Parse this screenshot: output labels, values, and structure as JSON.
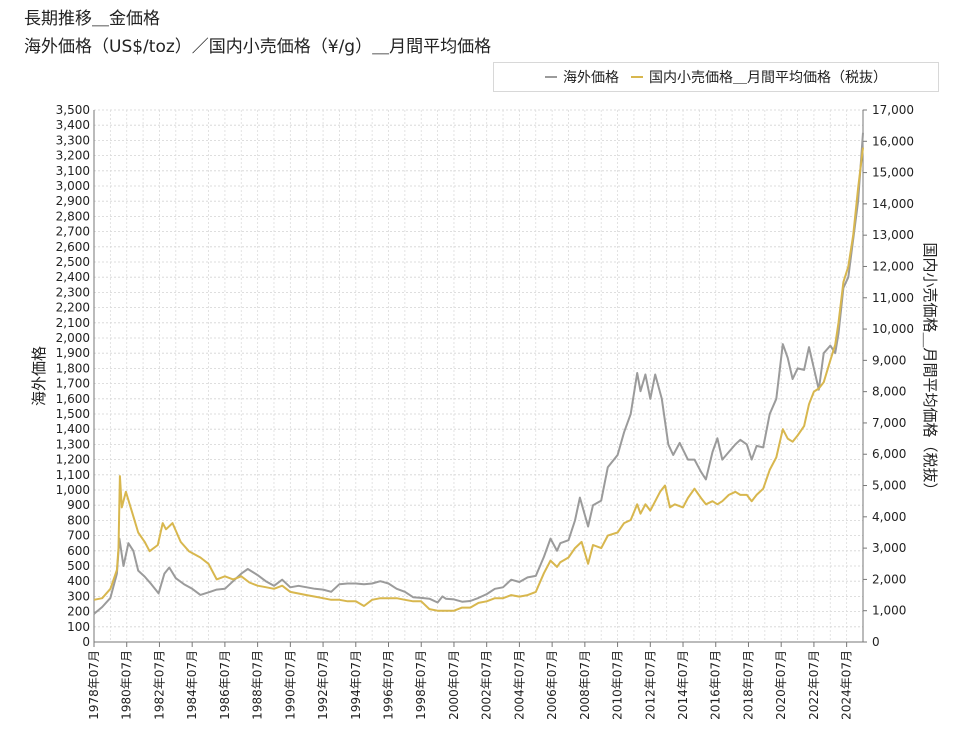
{
  "header": {
    "title_line1": "長期推移＿金価格",
    "title_line2": "海外価格（US$/toz）／国内小売価格（¥/g）＿月間平均価格"
  },
  "chart_data": {
    "type": "line",
    "title": "長期推移＿金価格",
    "subtitle": "海外価格（US$/toz）／国内小売価格（¥/g）＿月間平均価格",
    "legend_position": "top-right",
    "grid": true,
    "y_left": {
      "label": "海外価格",
      "range": [
        0,
        3500
      ],
      "ticks": [
        "0",
        "100",
        "200",
        "300",
        "400",
        "500",
        "600",
        "700",
        "800",
        "900",
        "1,000",
        "1,100",
        "1,200",
        "1,300",
        "1,400",
        "1,500",
        "1,600",
        "1,700",
        "1,800",
        "1,900",
        "2,000",
        "2,100",
        "2,200",
        "2,300",
        "2,400",
        "2,500",
        "2,600",
        "2,700",
        "2,800",
        "2,900",
        "3,000",
        "3,100",
        "3,200",
        "3,300",
        "3,400",
        "3,500"
      ]
    },
    "y_right": {
      "label": "国内小売価格＿月間平均価格（税抜）",
      "range": [
        0,
        17000
      ],
      "ticks": [
        "0",
        "1,000",
        "2,000",
        "3,000",
        "4,000",
        "5,000",
        "6,000",
        "7,000",
        "8,000",
        "9,000",
        "10,000",
        "11,000",
        "12,000",
        "13,000",
        "14,000",
        "15,000",
        "16,000",
        "17,000"
      ]
    },
    "x_range": [
      1978.5,
      2025.5
    ],
    "x_tick_labels": [
      "1978年07月",
      "1980年07月",
      "1982年07月",
      "1984年07月",
      "1986年07月",
      "1988年07月",
      "1990年07月",
      "1992年07月",
      "1994年07月",
      "1996年07月",
      "1998年07月",
      "2000年07月",
      "2002年07月",
      "2004年07月",
      "2006年07月",
      "2008年07月",
      "2010年07月",
      "2012年07月",
      "2014年07月",
      "2016年07月",
      "2018年07月",
      "2020年07月",
      "2022年07月",
      "2024年07月"
    ],
    "series": [
      {
        "name": "海外価格",
        "axis": "left",
        "color": "#9b9b9b",
        "points": [
          [
            1978.5,
            185
          ],
          [
            1979.0,
            230
          ],
          [
            1979.5,
            290
          ],
          [
            1979.9,
            450
          ],
          [
            1980.05,
            680
          ],
          [
            1980.3,
            500
          ],
          [
            1980.6,
            650
          ],
          [
            1980.9,
            600
          ],
          [
            1981.2,
            470
          ],
          [
            1981.6,
            430
          ],
          [
            1982.0,
            380
          ],
          [
            1982.45,
            320
          ],
          [
            1982.8,
            450
          ],
          [
            1983.1,
            490
          ],
          [
            1983.5,
            420
          ],
          [
            1984.0,
            380
          ],
          [
            1984.5,
            350
          ],
          [
            1985.0,
            310
          ],
          [
            1985.6,
            330
          ],
          [
            1986.0,
            345
          ],
          [
            1986.5,
            350
          ],
          [
            1987.0,
            400
          ],
          [
            1987.5,
            450
          ],
          [
            1987.9,
            480
          ],
          [
            1988.5,
            440
          ],
          [
            1989.0,
            400
          ],
          [
            1989.5,
            370
          ],
          [
            1990.0,
            410
          ],
          [
            1990.5,
            360
          ],
          [
            1991.0,
            370
          ],
          [
            1991.5,
            360
          ],
          [
            1992.0,
            350
          ],
          [
            1992.5,
            345
          ],
          [
            1993.0,
            330
          ],
          [
            1993.5,
            380
          ],
          [
            1994.0,
            385
          ],
          [
            1994.5,
            385
          ],
          [
            1995.0,
            380
          ],
          [
            1995.5,
            385
          ],
          [
            1996.0,
            400
          ],
          [
            1996.5,
            385
          ],
          [
            1997.0,
            350
          ],
          [
            1997.5,
            330
          ],
          [
            1998.0,
            295
          ],
          [
            1998.5,
            290
          ],
          [
            1999.0,
            285
          ],
          [
            1999.5,
            260
          ],
          [
            1999.8,
            300
          ],
          [
            2000.0,
            285
          ],
          [
            2000.5,
            280
          ],
          [
            2001.0,
            265
          ],
          [
            2001.5,
            270
          ],
          [
            2002.0,
            290
          ],
          [
            2002.5,
            315
          ],
          [
            2003.0,
            350
          ],
          [
            2003.5,
            360
          ],
          [
            2004.0,
            410
          ],
          [
            2004.5,
            395
          ],
          [
            2005.0,
            425
          ],
          [
            2005.5,
            435
          ],
          [
            2006.0,
            560
          ],
          [
            2006.4,
            680
          ],
          [
            2006.8,
            600
          ],
          [
            2007.0,
            650
          ],
          [
            2007.5,
            670
          ],
          [
            2007.9,
            800
          ],
          [
            2008.2,
            950
          ],
          [
            2008.7,
            760
          ],
          [
            2009.0,
            900
          ],
          [
            2009.5,
            930
          ],
          [
            2009.9,
            1150
          ],
          [
            2010.5,
            1230
          ],
          [
            2010.9,
            1380
          ],
          [
            2011.3,
            1500
          ],
          [
            2011.7,
            1770
          ],
          [
            2011.9,
            1650
          ],
          [
            2012.2,
            1760
          ],
          [
            2012.5,
            1600
          ],
          [
            2012.8,
            1760
          ],
          [
            2013.2,
            1600
          ],
          [
            2013.6,
            1300
          ],
          [
            2013.9,
            1230
          ],
          [
            2014.3,
            1310
          ],
          [
            2014.8,
            1200
          ],
          [
            2015.2,
            1200
          ],
          [
            2015.6,
            1120
          ],
          [
            2015.9,
            1070
          ],
          [
            2016.3,
            1250
          ],
          [
            2016.6,
            1340
          ],
          [
            2016.9,
            1200
          ],
          [
            2017.3,
            1250
          ],
          [
            2017.7,
            1300
          ],
          [
            2018.0,
            1330
          ],
          [
            2018.4,
            1300
          ],
          [
            2018.7,
            1200
          ],
          [
            2019.0,
            1290
          ],
          [
            2019.4,
            1280
          ],
          [
            2019.8,
            1500
          ],
          [
            2020.2,
            1600
          ],
          [
            2020.6,
            1960
          ],
          [
            2020.9,
            1870
          ],
          [
            2021.2,
            1730
          ],
          [
            2021.5,
            1800
          ],
          [
            2021.9,
            1790
          ],
          [
            2022.2,
            1940
          ],
          [
            2022.5,
            1800
          ],
          [
            2022.8,
            1660
          ],
          [
            2023.1,
            1900
          ],
          [
            2023.5,
            1950
          ],
          [
            2023.8,
            1900
          ],
          [
            2024.0,
            2030
          ],
          [
            2024.3,
            2330
          ],
          [
            2024.6,
            2400
          ],
          [
            2024.9,
            2650
          ],
          [
            2025.2,
            2900
          ],
          [
            2025.5,
            3350
          ]
        ]
      },
      {
        "name": "国内小売価格＿月間平均価格（税抜）",
        "axis": "right",
        "color": "#d8b74e",
        "points": [
          [
            1978.5,
            1350
          ],
          [
            1979.0,
            1400
          ],
          [
            1979.5,
            1700
          ],
          [
            1979.9,
            2300
          ],
          [
            1980.0,
            3000
          ],
          [
            1980.08,
            5300
          ],
          [
            1980.2,
            4300
          ],
          [
            1980.45,
            4800
          ],
          [
            1980.8,
            4200
          ],
          [
            1981.2,
            3500
          ],
          [
            1981.6,
            3200
          ],
          [
            1981.9,
            2900
          ],
          [
            1982.4,
            3100
          ],
          [
            1982.7,
            3800
          ],
          [
            1982.9,
            3600
          ],
          [
            1983.3,
            3800
          ],
          [
            1983.8,
            3200
          ],
          [
            1984.3,
            2900
          ],
          [
            1985.0,
            2700
          ],
          [
            1985.5,
            2500
          ],
          [
            1986.0,
            2000
          ],
          [
            1986.5,
            2100
          ],
          [
            1987.0,
            2000
          ],
          [
            1987.5,
            2100
          ],
          [
            1988.0,
            1900
          ],
          [
            1988.5,
            1800
          ],
          [
            1989.0,
            1750
          ],
          [
            1989.5,
            1700
          ],
          [
            1990.0,
            1800
          ],
          [
            1990.5,
            1600
          ],
          [
            1991.0,
            1550
          ],
          [
            1991.5,
            1500
          ],
          [
            1992.0,
            1450
          ],
          [
            1992.5,
            1400
          ],
          [
            1993.0,
            1350
          ],
          [
            1993.5,
            1350
          ],
          [
            1994.0,
            1300
          ],
          [
            1994.5,
            1300
          ],
          [
            1995.0,
            1150
          ],
          [
            1995.5,
            1350
          ],
          [
            1996.0,
            1400
          ],
          [
            1996.5,
            1400
          ],
          [
            1997.0,
            1400
          ],
          [
            1997.5,
            1350
          ],
          [
            1998.0,
            1300
          ],
          [
            1998.5,
            1300
          ],
          [
            1999.0,
            1050
          ],
          [
            1999.5,
            1000
          ],
          [
            2000.0,
            1000
          ],
          [
            2000.5,
            1000
          ],
          [
            2001.0,
            1100
          ],
          [
            2001.5,
            1100
          ],
          [
            2002.0,
            1250
          ],
          [
            2002.5,
            1300
          ],
          [
            2003.0,
            1400
          ],
          [
            2003.5,
            1400
          ],
          [
            2004.0,
            1500
          ],
          [
            2004.5,
            1450
          ],
          [
            2005.0,
            1500
          ],
          [
            2005.5,
            1600
          ],
          [
            2006.0,
            2200
          ],
          [
            2006.4,
            2600
          ],
          [
            2006.8,
            2400
          ],
          [
            2007.0,
            2550
          ],
          [
            2007.5,
            2700
          ],
          [
            2007.9,
            3000
          ],
          [
            2008.3,
            3200
          ],
          [
            2008.7,
            2500
          ],
          [
            2009.0,
            3100
          ],
          [
            2009.5,
            3000
          ],
          [
            2009.9,
            3400
          ],
          [
            2010.5,
            3500
          ],
          [
            2010.9,
            3800
          ],
          [
            2011.3,
            3900
          ],
          [
            2011.7,
            4400
          ],
          [
            2011.9,
            4100
          ],
          [
            2012.2,
            4400
          ],
          [
            2012.5,
            4200
          ],
          [
            2012.8,
            4500
          ],
          [
            2013.1,
            4800
          ],
          [
            2013.4,
            5000
          ],
          [
            2013.7,
            4300
          ],
          [
            2014.0,
            4400
          ],
          [
            2014.5,
            4300
          ],
          [
            2014.8,
            4600
          ],
          [
            2015.2,
            4900
          ],
          [
            2015.6,
            4600
          ],
          [
            2015.9,
            4400
          ],
          [
            2016.3,
            4500
          ],
          [
            2016.6,
            4400
          ],
          [
            2016.9,
            4500
          ],
          [
            2017.3,
            4700
          ],
          [
            2017.7,
            4800
          ],
          [
            2018.0,
            4700
          ],
          [
            2018.4,
            4700
          ],
          [
            2018.7,
            4500
          ],
          [
            2019.0,
            4700
          ],
          [
            2019.4,
            4900
          ],
          [
            2019.8,
            5500
          ],
          [
            2020.2,
            5900
          ],
          [
            2020.6,
            6800
          ],
          [
            2020.9,
            6500
          ],
          [
            2021.2,
            6400
          ],
          [
            2021.5,
            6600
          ],
          [
            2021.9,
            6900
          ],
          [
            2022.2,
            7600
          ],
          [
            2022.5,
            8000
          ],
          [
            2022.8,
            8100
          ],
          [
            2023.1,
            8300
          ],
          [
            2023.5,
            9000
          ],
          [
            2023.8,
            9500
          ],
          [
            2024.0,
            10200
          ],
          [
            2024.3,
            11500
          ],
          [
            2024.6,
            12000
          ],
          [
            2024.9,
            13000
          ],
          [
            2025.2,
            14500
          ],
          [
            2025.5,
            15800
          ]
        ]
      }
    ]
  }
}
